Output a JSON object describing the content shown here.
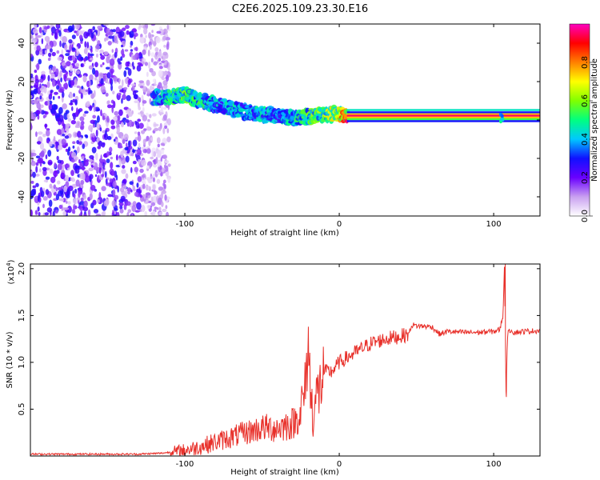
{
  "title": "C2E6.2025.109.23.30.E16",
  "chart_data": [
    {
      "type": "heatmap",
      "xlabel": "Height of straight line (km)",
      "ylabel": "Frequency (Hz)",
      "xlim": [
        -200,
        130
      ],
      "ylim": [
        -50,
        50
      ],
      "xticks": [
        -100,
        0,
        100
      ],
      "yticks": [
        -40,
        -20,
        0,
        20,
        40
      ],
      "colorbar": {
        "label": "Normalized spectral amplitude",
        "range": [
          0,
          1
        ],
        "ticks": [
          "0.0",
          "0.2",
          "0.4",
          "0.6",
          "0.8"
        ],
        "colors": [
          "#ffffff",
          "#c9a0f0",
          "#6a00ff",
          "#1010ff",
          "#00c8ff",
          "#00ff80",
          "#80ff00",
          "#ffff00",
          "#ff8000",
          "#ff0000",
          "#ff00c0"
        ]
      },
      "noise_region": {
        "x": [
          -200,
          -110
        ],
        "amplitude": 0.25
      },
      "ridge": {
        "x": [
          -120,
          -110,
          -100,
          -90,
          -80,
          -70,
          -60,
          -50,
          -40,
          -30,
          -20,
          -10,
          0,
          5,
          20,
          60,
          100,
          110,
          130
        ],
        "frequency": [
          12,
          12,
          13,
          10,
          8,
          6,
          4,
          3,
          2,
          1,
          2,
          3,
          3,
          2,
          2,
          2,
          2,
          2,
          2
        ],
        "amplitude": [
          0.4,
          0.5,
          0.55,
          0.5,
          0.4,
          0.45,
          0.4,
          0.45,
          0.4,
          0.45,
          0.55,
          0.6,
          0.7,
          0.9,
          0.95,
          0.95,
          0.95,
          0.95,
          0.95
        ]
      }
    },
    {
      "type": "line",
      "xlabel": "Height of straight line (km)",
      "ylabel": "SNR (10 * v/v)",
      "y_multiplier": "(x10",
      "y_multiplier_exp": "4",
      "xlim": [
        -200,
        130
      ],
      "ylim": [
        0,
        2.05
      ],
      "xticks": [
        -100,
        0,
        100
      ],
      "yticks": [
        "0.5",
        "1.0",
        "1.5",
        "2.0"
      ],
      "color": "#e8302a",
      "series": [
        {
          "x": [
            -200,
            -160,
            -130,
            -115,
            -100,
            -90,
            -80,
            -70,
            -60,
            -50,
            -40,
            -30,
            -25,
            -22,
            -20,
            -18,
            -15,
            -12,
            -10,
            -5,
            0,
            5,
            10,
            15,
            20,
            30,
            40,
            45,
            47,
            50,
            60,
            65,
            70,
            80,
            90,
            100,
            104,
            106,
            107,
            108,
            109,
            111,
            113,
            120,
            130
          ],
          "y": [
            0.02,
            0.02,
            0.02,
            0.03,
            0.06,
            0.1,
            0.15,
            0.2,
            0.25,
            0.3,
            0.3,
            0.35,
            0.45,
            0.7,
            1.2,
            0.5,
            0.6,
            0.75,
            0.9,
            0.9,
            1.0,
            1.05,
            1.1,
            1.15,
            1.2,
            1.25,
            1.28,
            1.3,
            1.4,
            1.39,
            1.38,
            1.3,
            1.33,
            1.32,
            1.32,
            1.33,
            1.35,
            1.5,
            2.02,
            0.7,
            1.3,
            1.35,
            1.32,
            1.33,
            1.34
          ]
        }
      ]
    }
  ]
}
